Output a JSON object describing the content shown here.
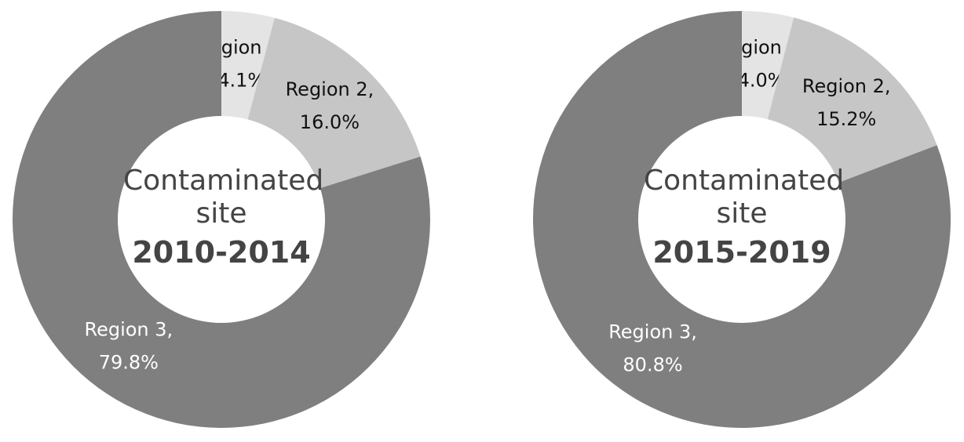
{
  "chart_data": [
    {
      "type": "pie",
      "title": "Contaminated site",
      "subtitle": "2010-2014",
      "categories": [
        "Region 1,",
        "Region 2,",
        "Region 3,"
      ],
      "values": [
        4.1,
        16.0,
        79.8
      ],
      "value_labels": [
        "4.1%",
        "16.0%",
        "79.8%"
      ],
      "colors": [
        "#e4e4e4",
        "#c6c6c6",
        "#7f7f7f"
      ]
    },
    {
      "type": "pie",
      "title": "Contaminated site",
      "subtitle": "2015-2019",
      "categories": [
        "Region 1,",
        "Region 2,",
        "Region 3,"
      ],
      "values": [
        4.0,
        15.2,
        80.8
      ],
      "value_labels": [
        "4.0%",
        "15.2%",
        "80.8%"
      ],
      "colors": [
        "#e4e4e4",
        "#c6c6c6",
        "#7f7f7f"
      ]
    }
  ]
}
